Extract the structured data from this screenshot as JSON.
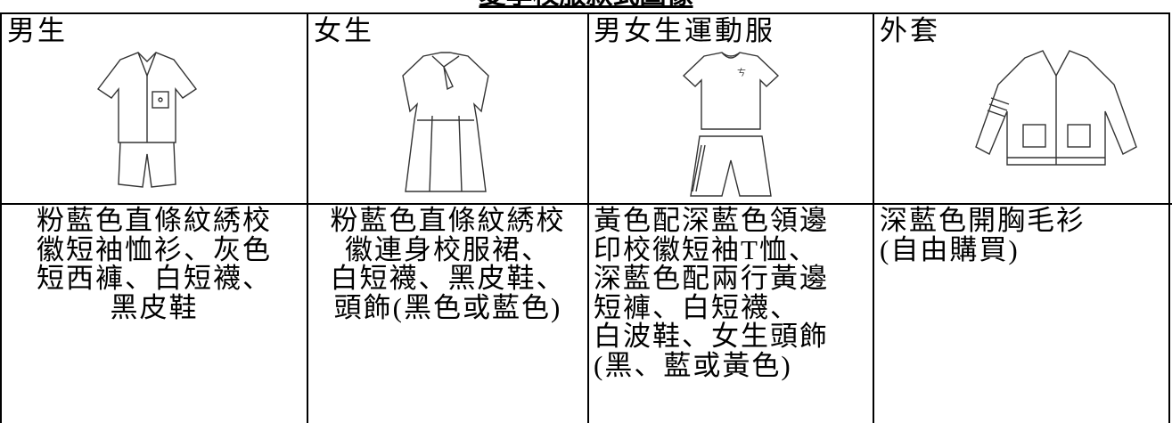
{
  "title": "夏季校服款式圖像",
  "columns": [
    {
      "header": "男生",
      "description": [
        "粉藍色直條紋綉校",
        "徽短袖恤衫、灰色",
        "短西褲、白短襪、",
        "黑皮鞋"
      ]
    },
    {
      "header": "女生",
      "description": [
        "粉藍色直條紋綉校",
        "徽連身校服裙、",
        "白短襪、黑皮鞋、",
        "頭飾(黑色或藍色)"
      ]
    },
    {
      "header": "男女生運動服",
      "description": [
        "黃色配深藍色領邊",
        "印校徽短袖T恤、",
        "深藍色配兩行黃邊",
        "短褲、白短襪、",
        "白波鞋、女生頭飾",
        "(黑、藍或黃色)"
      ]
    },
    {
      "header": "外套",
      "description": [
        "深藍色開胸毛衫",
        "(自由購買)"
      ]
    }
  ]
}
